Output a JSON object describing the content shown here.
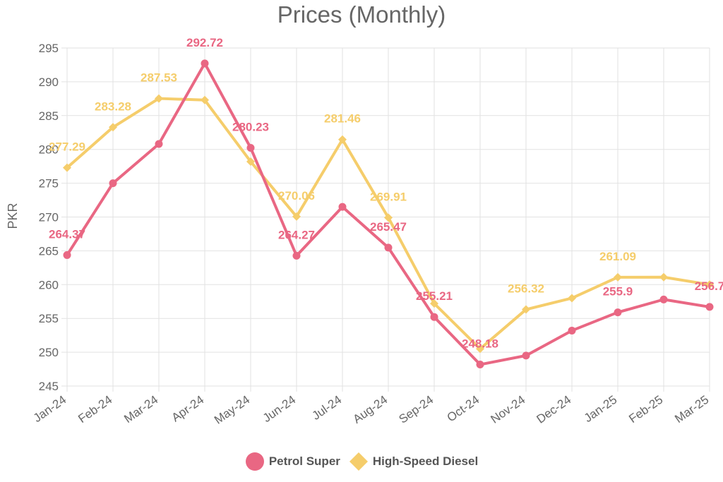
{
  "chart_data": {
    "type": "line",
    "title": "Prices (Monthly)",
    "xlabel": "",
    "ylabel": "PKR",
    "ylim": [
      245,
      295
    ],
    "yticks": [
      245,
      250,
      255,
      260,
      265,
      270,
      275,
      280,
      285,
      290,
      295
    ],
    "grid": true,
    "legend_position": "bottom",
    "categories": [
      "Jan-24",
      "Feb-24",
      "Mar-24",
      "Apr-24",
      "May-24",
      "Jun-24",
      "Jul-24",
      "Aug-24",
      "Sep-24",
      "Oct-24",
      "Nov-24",
      "Dec-24",
      "Jan-25",
      "Feb-25",
      "Mar-25"
    ],
    "series": [
      {
        "name": "Petrol Super",
        "color": "#e96783",
        "marker": "circle",
        "values": [
          264.37,
          275.0,
          280.8,
          292.72,
          280.23,
          264.27,
          271.5,
          265.47,
          255.21,
          248.18,
          249.5,
          253.2,
          255.9,
          257.8,
          256.7
        ],
        "labels": [
          "264.37",
          null,
          null,
          "292.72",
          "280.23",
          "264.27",
          null,
          "265.47",
          "255.21",
          "248.18",
          null,
          null,
          "255.9",
          null,
          "256.7"
        ]
      },
      {
        "name": "High-Speed Diesel",
        "color": "#f5cd6b",
        "marker": "diamond",
        "values": [
          277.29,
          283.28,
          287.53,
          287.3,
          278.2,
          270.06,
          281.46,
          269.91,
          257.2,
          250.5,
          256.32,
          258.0,
          261.09,
          261.1,
          260.0
        ],
        "labels": [
          "277.29",
          "283.28",
          "287.53",
          null,
          null,
          "270.06",
          "281.46",
          "269.91",
          null,
          null,
          "256.32",
          null,
          "261.09",
          null,
          null
        ]
      }
    ]
  }
}
